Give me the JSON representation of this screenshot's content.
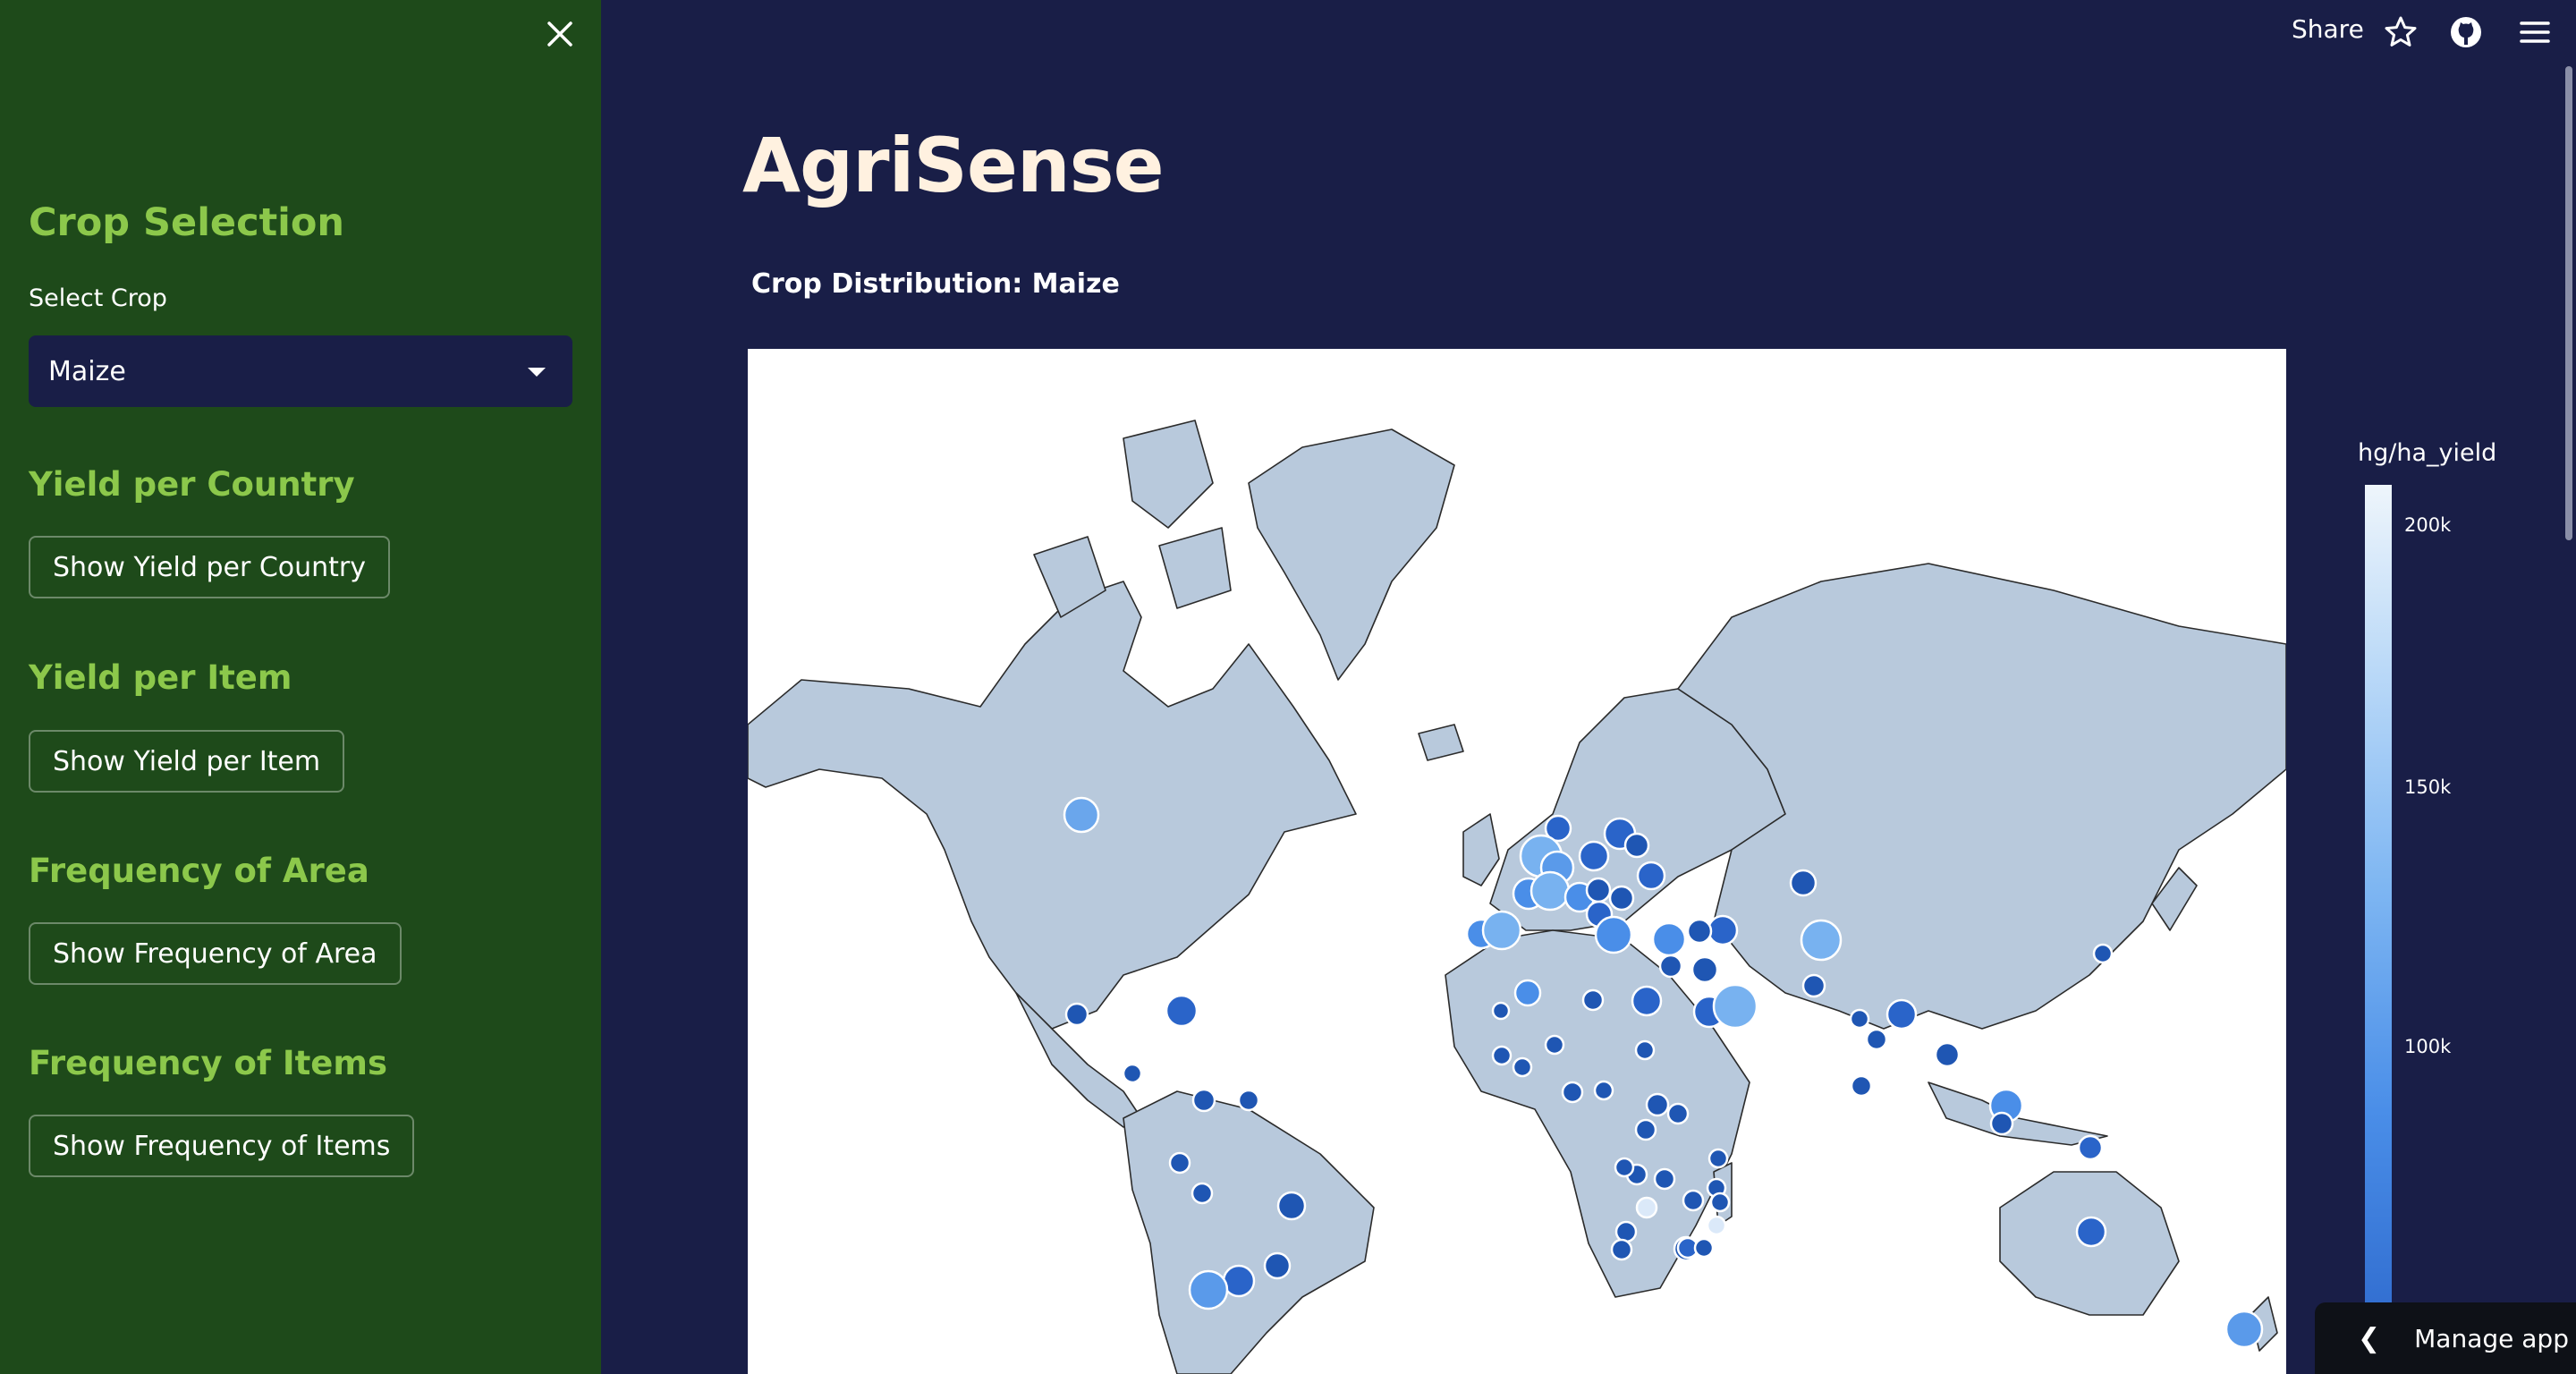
{
  "sidebar": {
    "heading": "Crop Selection",
    "select_label": "Select Crop",
    "selected_crop": "Maize",
    "sections": [
      {
        "heading": "Yield per Country",
        "button": "Show Yield per Country"
      },
      {
        "heading": "Yield per Item",
        "button": "Show Yield per Item"
      },
      {
        "heading": "Frequency of Area",
        "button": "Show Frequency of Area"
      },
      {
        "heading": "Frequency of Items",
        "button": "Show Frequency of Items"
      }
    ]
  },
  "header": {
    "share_label": "Share",
    "icons": [
      "star-icon",
      "github-icon",
      "menu-icon"
    ]
  },
  "main": {
    "title": "AgriSense",
    "subtitle": "Crop Distribution: Maize"
  },
  "colorbar": {
    "title": "hg/ha_yield",
    "ticks": [
      "200k",
      "150k",
      "100k"
    ]
  },
  "manage_app": {
    "label": "Manage app"
  },
  "colors": {
    "sidebar_bg": "#1e4a1a",
    "main_bg": "#191e47",
    "accent_green": "#8cc84b",
    "land": "#b8c9dc",
    "marker_dark": "#1f56b3",
    "marker_light": "#78b2f0"
  }
}
